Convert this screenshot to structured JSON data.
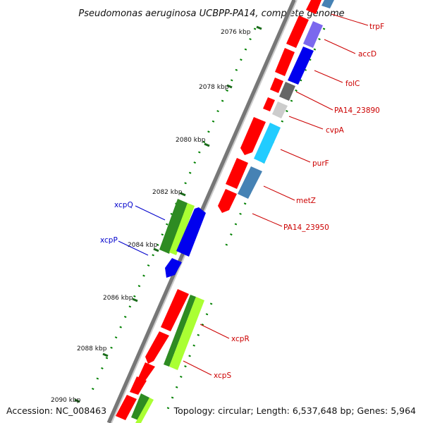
{
  "title": "Pseudomonas aeruginosa UCBPP-PA14, complete genome",
  "footer": {
    "accession": "Accession: NC_008463",
    "topology": "Topology: circular; Length: 6,537,648 bp; Genes: 5,964"
  },
  "ticks": [
    "2076 kbp",
    "2078 kbp",
    "2080 kbp",
    "2082 kbp",
    "2084 kbp",
    "2086 kbp",
    "2088 kbp",
    "2090 kbp"
  ],
  "genes_right": [
    "trpF",
    "accD",
    "folC",
    "PA14_23890",
    "cvpA",
    "purF",
    "metZ",
    "PA14_23950",
    "xcpR",
    "xcpS"
  ],
  "genes_left": [
    "xcpQ",
    "xcpP"
  ],
  "colors": {
    "red": "#ff0000",
    "blue": "#0000ee",
    "green": "#2e8b22",
    "lightgreen": "#aaff33",
    "darkgray": "#666666",
    "lightgray": "#cccccc",
    "cyan": "#22ccff",
    "steelblue": "#4682b4",
    "purple": "#7b68ee",
    "dotgreen": "#008000",
    "labelred": "#cc0000",
    "labelblue": "#0000cc"
  }
}
